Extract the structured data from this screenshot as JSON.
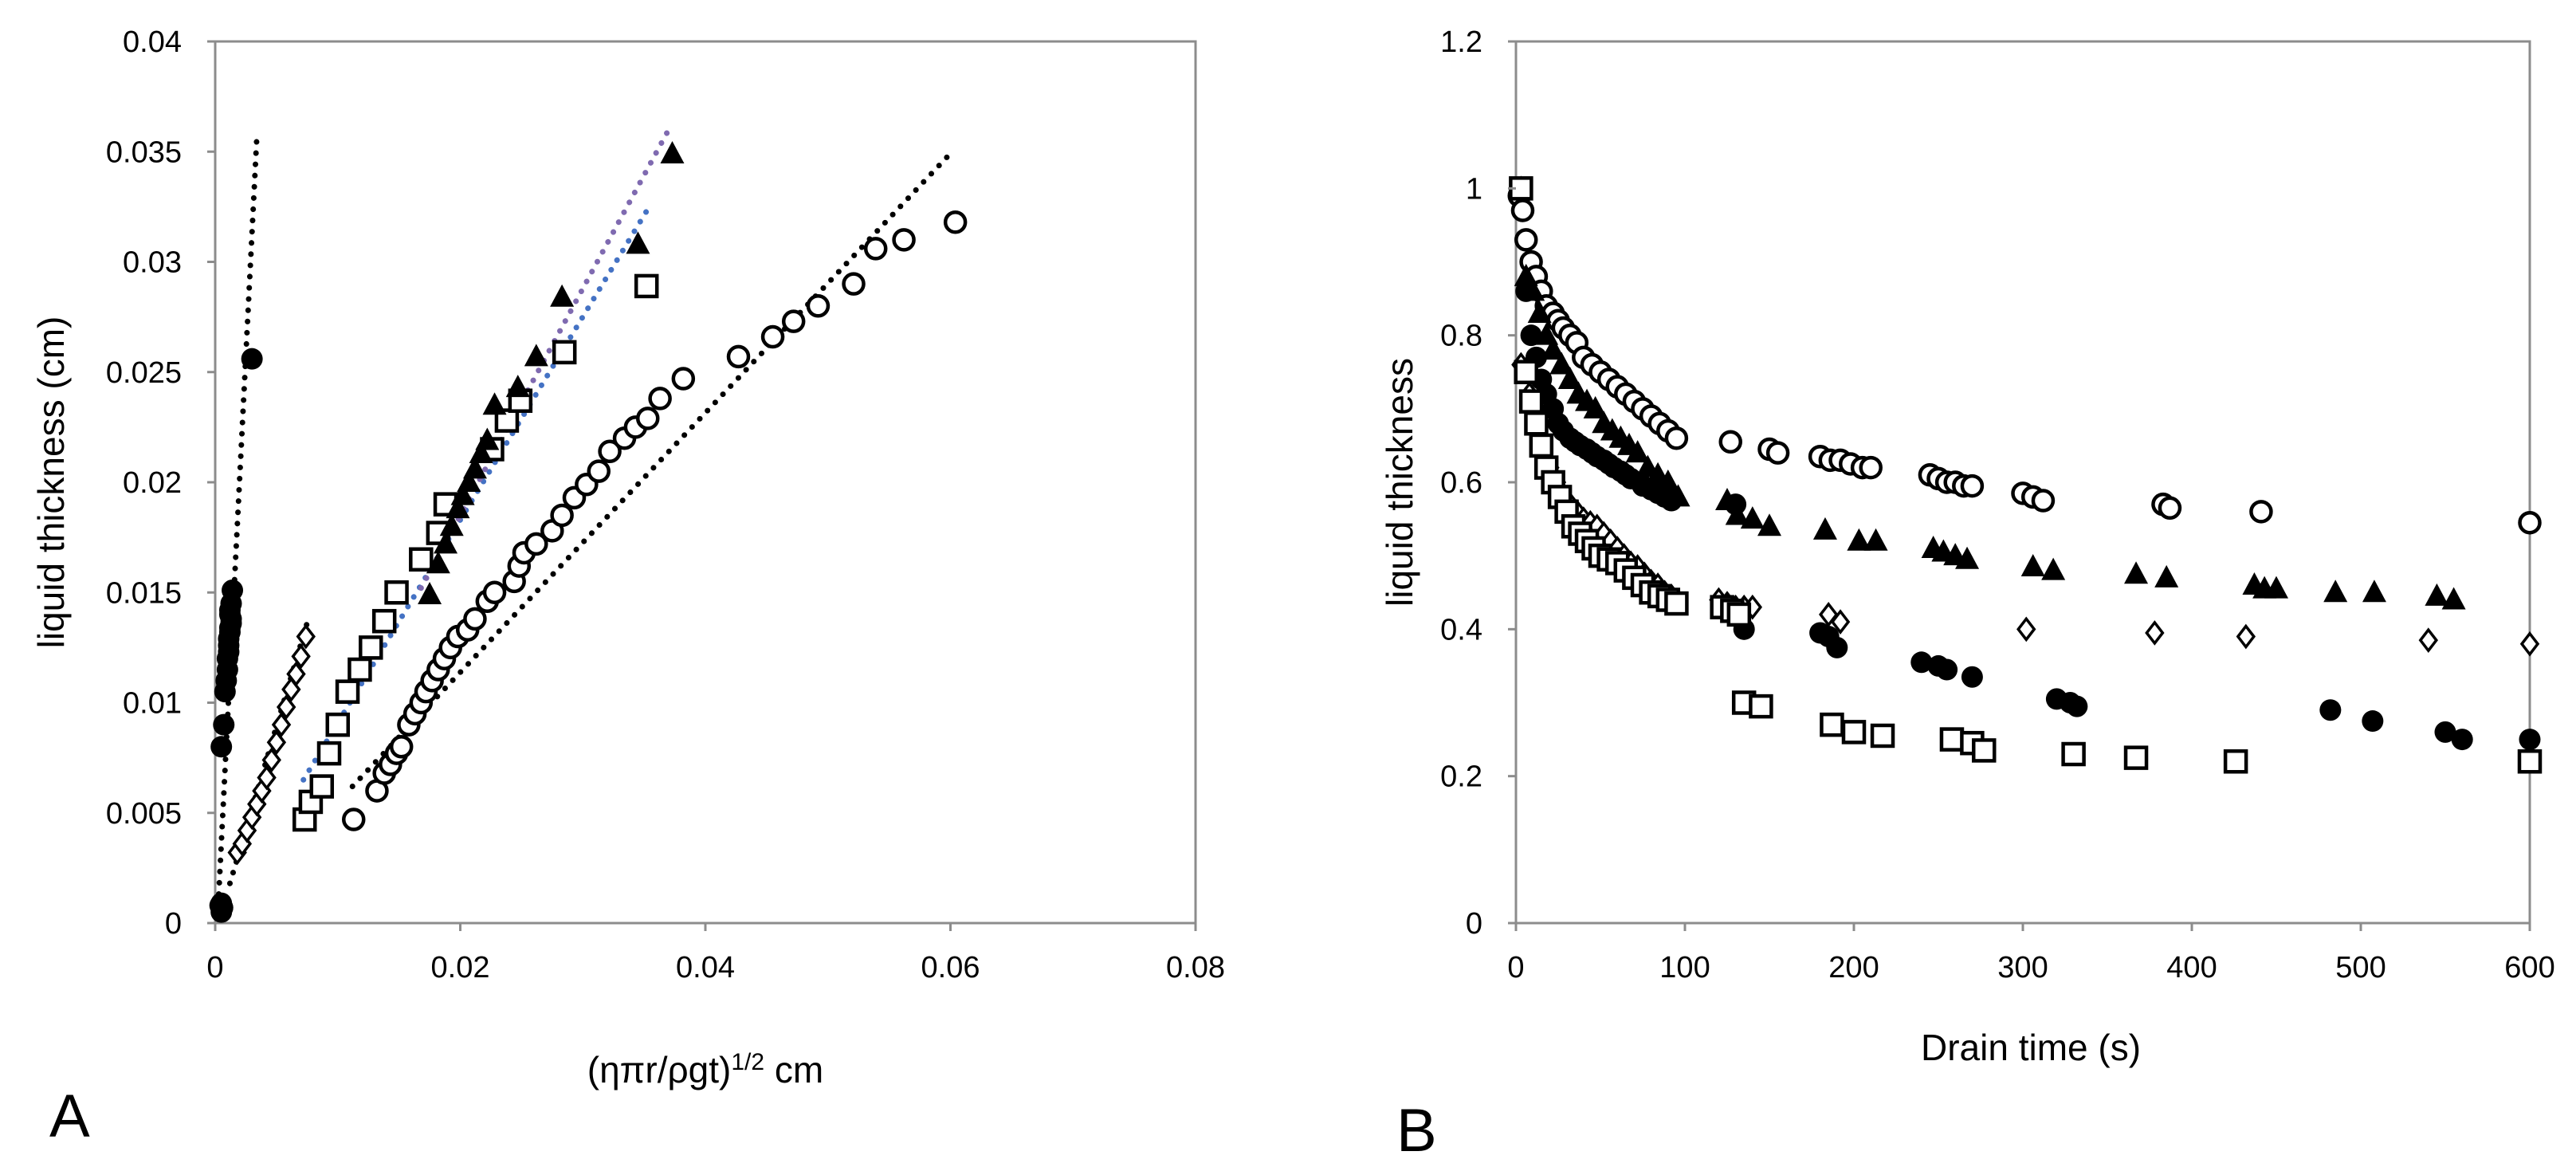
{
  "charts": [
    {
      "panel_label": "A",
      "type": "scatter",
      "xlabel": "(ηπr/ρgt)",
      "xlabel_superscript": "1/2",
      "xlabel_unit": "cm",
      "ylabel": "liquid thickness (cm)",
      "xlim": [
        0,
        0.08
      ],
      "ylim": [
        0,
        0.04
      ],
      "xticks": [
        "0",
        "0.02",
        "0.04",
        "0.06",
        "0.08"
      ],
      "yticks": [
        "0",
        "0.005",
        "0.01",
        "0.015",
        "0.02",
        "0.025",
        "0.03",
        "0.035",
        "0.04"
      ],
      "grid": false,
      "series": [
        {
          "name": "filled circle",
          "marker": "circle-filled",
          "x": [
            0.0005,
            0.0006,
            0.0005,
            0.0004,
            0.0005,
            0.0007,
            0.0008,
            0.0009,
            0.001,
            0.001,
            0.0011,
            0.0011,
            0.0011,
            0.0012,
            0.0012,
            0.0013,
            0.0013,
            0.0012,
            0.0012,
            0.0013,
            0.0014,
            0.003
          ],
          "y": [
            0.0005,
            0.0007,
            0.0009,
            0.0008,
            0.008,
            0.009,
            0.0105,
            0.011,
            0.0115,
            0.012,
            0.0123,
            0.0126,
            0.0129,
            0.0132,
            0.0134,
            0.0136,
            0.0138,
            0.014,
            0.0142,
            0.0145,
            0.0151,
            0.0256
          ]
        },
        {
          "name": "open diamond",
          "marker": "diamond-open",
          "x": [
            0.0018,
            0.0022,
            0.0026,
            0.003,
            0.0034,
            0.0038,
            0.0042,
            0.0046,
            0.005,
            0.0054,
            0.0058,
            0.0062,
            0.0066,
            0.007,
            0.0074
          ],
          "y": [
            0.0032,
            0.0036,
            0.0042,
            0.0048,
            0.0054,
            0.006,
            0.0066,
            0.0074,
            0.0082,
            0.009,
            0.0098,
            0.0106,
            0.0113,
            0.0121,
            0.013
          ]
        },
        {
          "name": "open square",
          "marker": "square-open",
          "x": [
            0.0073,
            0.0078,
            0.0087,
            0.0093,
            0.01,
            0.0108,
            0.0118,
            0.0127,
            0.0138,
            0.0148,
            0.0168,
            0.0182,
            0.0188,
            0.0226,
            0.0238,
            0.0249,
            0.0285,
            0.0352
          ],
          "y": [
            0.0047,
            0.0055,
            0.0062,
            0.0077,
            0.009,
            0.0105,
            0.0115,
            0.0125,
            0.0137,
            0.015,
            0.0165,
            0.0177,
            0.019,
            0.0215,
            0.0228,
            0.0237,
            0.0259,
            0.0289
          ]
        },
        {
          "name": "filled triangle",
          "marker": "triangle-filled",
          "x": [
            0.0175,
            0.0182,
            0.0188,
            0.0193,
            0.0198,
            0.0202,
            0.0207,
            0.0212,
            0.0217,
            0.0222,
            0.0228,
            0.0247,
            0.0262,
            0.0283,
            0.0345,
            0.0373
          ],
          "y": [
            0.0149,
            0.0163,
            0.0172,
            0.018,
            0.0188,
            0.0194,
            0.02,
            0.0206,
            0.0213,
            0.0219,
            0.0235,
            0.0243,
            0.0257,
            0.0284,
            0.0308,
            0.0349
          ]
        },
        {
          "name": "open circle",
          "marker": "circle-open",
          "x": [
            0.0113,
            0.0132,
            0.0138,
            0.0143,
            0.0148,
            0.0152,
            0.0158,
            0.0163,
            0.0168,
            0.0172,
            0.0177,
            0.0182,
            0.0187,
            0.0192,
            0.0198,
            0.0206,
            0.0212,
            0.0222,
            0.0228,
            0.0244,
            0.0248,
            0.0252,
            0.0262,
            0.0275,
            0.0283,
            0.0293,
            0.0303,
            0.0313,
            0.0322,
            0.0334,
            0.0343,
            0.0353,
            0.0363,
            0.0382,
            0.0427,
            0.0455,
            0.0472,
            0.0492,
            0.0521,
            0.0539,
            0.0562,
            0.0604
          ],
          "y": [
            0.0047,
            0.006,
            0.0068,
            0.0072,
            0.0077,
            0.008,
            0.009,
            0.0095,
            0.01,
            0.0105,
            0.011,
            0.0115,
            0.012,
            0.0125,
            0.013,
            0.0133,
            0.0138,
            0.0146,
            0.015,
            0.0155,
            0.0162,
            0.0168,
            0.0172,
            0.0178,
            0.0185,
            0.0193,
            0.0199,
            0.0205,
            0.0214,
            0.022,
            0.0225,
            0.0229,
            0.0238,
            0.0247,
            0.0257,
            0.0266,
            0.0273,
            0.028,
            0.029,
            0.0306,
            0.031,
            0.0318
          ]
        }
      ],
      "trendlines": [
        {
          "name": "filled circle fit",
          "color": "#000000",
          "x": [
            0.0002,
            0.0034
          ],
          "y": [
            0.0003,
            0.0357
          ]
        },
        {
          "name": "diamond fit",
          "color": "#000000",
          "x": [
            0.0012,
            0.0076
          ],
          "y": [
            0.0018,
            0.0138
          ]
        },
        {
          "name": "square fit",
          "color": "#4472c4",
          "x": [
            0.0072,
            0.0352
          ],
          "y": [
            0.0065,
            0.0323
          ]
        },
        {
          "name": "triangle fit",
          "color": "#7f6ab0",
          "x": [
            0.0168,
            0.0372
          ],
          "y": [
            0.0152,
            0.0362
          ]
        },
        {
          "name": "open circle fit",
          "color": "#000000",
          "x": [
            0.0112,
            0.0598
          ],
          "y": [
            0.0062,
            0.0348
          ]
        }
      ]
    },
    {
      "panel_label": "B",
      "type": "scatter",
      "xlabel": "Drain time (s)",
      "ylabel": "liquid thickness",
      "xlim": [
        0,
        600
      ],
      "ylim": [
        0,
        1.2
      ],
      "xticks": [
        "0",
        "100",
        "200",
        "300",
        "400",
        "500",
        "600"
      ],
      "yticks": [
        "0",
        "0.2",
        "0.4",
        "0.6",
        "0.8",
        "1",
        "1.2"
      ],
      "grid": false,
      "series": [
        {
          "name": "open circle",
          "marker": "circle-open",
          "x": [
            2,
            4,
            6,
            9,
            12,
            15,
            18,
            22,
            25,
            28,
            32,
            36,
            40,
            45,
            50,
            55,
            60,
            65,
            70,
            75,
            80,
            85,
            90,
            95,
            127,
            150,
            155,
            180,
            186,
            192,
            198,
            205,
            210,
            245,
            250,
            255,
            260,
            265,
            270,
            300,
            306,
            312,
            383,
            387,
            441,
            600
          ],
          "y": [
            0.99,
            0.97,
            0.93,
            0.9,
            0.88,
            0.86,
            0.84,
            0.83,
            0.82,
            0.81,
            0.8,
            0.79,
            0.77,
            0.76,
            0.75,
            0.74,
            0.73,
            0.72,
            0.71,
            0.7,
            0.69,
            0.68,
            0.67,
            0.66,
            0.655,
            0.645,
            0.64,
            0.635,
            0.63,
            0.63,
            0.625,
            0.62,
            0.62,
            0.61,
            0.605,
            0.6,
            0.6,
            0.595,
            0.595,
            0.585,
            0.58,
            0.575,
            0.57,
            0.565,
            0.56,
            0.545
          ]
        },
        {
          "name": "filled triangle",
          "marker": "triangle-filled",
          "x": [
            3,
            6,
            10,
            14,
            18,
            22,
            27,
            32,
            37,
            42,
            47,
            52,
            57,
            62,
            67,
            72,
            78,
            84,
            90,
            96,
            125,
            131,
            140,
            150,
            183,
            203,
            213,
            247,
            253,
            260,
            267,
            306,
            318,
            367,
            385,
            437,
            443,
            450,
            485,
            508,
            545,
            555
          ],
          "y": [
            1.0,
            0.88,
            0.86,
            0.83,
            0.8,
            0.78,
            0.76,
            0.74,
            0.72,
            0.71,
            0.7,
            0.68,
            0.67,
            0.66,
            0.65,
            0.64,
            0.62,
            0.61,
            0.6,
            0.58,
            0.575,
            0.555,
            0.55,
            0.54,
            0.535,
            0.52,
            0.52,
            0.51,
            0.505,
            0.5,
            0.495,
            0.485,
            0.48,
            0.475,
            0.47,
            0.46,
            0.455,
            0.455,
            0.45,
            0.45,
            0.445,
            0.44
          ]
        },
        {
          "name": "filled circle",
          "marker": "circle-filled",
          "x": [
            3,
            6,
            9,
            12,
            15,
            18,
            22,
            25,
            28,
            32,
            35,
            38,
            42,
            45,
            48,
            52,
            55,
            58,
            62,
            65,
            68,
            75,
            80,
            84,
            88,
            92,
            130,
            135,
            180,
            185,
            190,
            240,
            250,
            255,
            270,
            320,
            328,
            332,
            482,
            507,
            550,
            560,
            600
          ],
          "y": [
            1.0,
            0.86,
            0.8,
            0.77,
            0.74,
            0.72,
            0.7,
            0.68,
            0.67,
            0.66,
            0.655,
            0.65,
            0.645,
            0.64,
            0.635,
            0.63,
            0.625,
            0.62,
            0.615,
            0.61,
            0.605,
            0.595,
            0.59,
            0.585,
            0.58,
            0.575,
            0.57,
            0.4,
            0.395,
            0.39,
            0.375,
            0.355,
            0.35,
            0.345,
            0.335,
            0.305,
            0.3,
            0.295,
            0.29,
            0.275,
            0.26,
            0.25,
            0.25
          ]
        },
        {
          "name": "open diamond",
          "marker": "diamond-open",
          "x": [
            3,
            8,
            12,
            16,
            20,
            24,
            28,
            32,
            36,
            40,
            44,
            48,
            52,
            56,
            60,
            64,
            68,
            72,
            76,
            80,
            84,
            88,
            92,
            120,
            125,
            130,
            135,
            140,
            185,
            192,
            302,
            378,
            432,
            540,
            600
          ],
          "y": [
            0.76,
            0.72,
            0.68,
            0.65,
            0.62,
            0.6,
            0.58,
            0.57,
            0.56,
            0.55,
            0.545,
            0.54,
            0.53,
            0.52,
            0.51,
            0.5,
            0.49,
            0.485,
            0.475,
            0.465,
            0.46,
            0.45,
            0.445,
            0.44,
            0.435,
            0.43,
            0.43,
            0.43,
            0.42,
            0.41,
            0.4,
            0.395,
            0.39,
            0.385,
            0.38
          ]
        },
        {
          "name": "open square",
          "marker": "square-open",
          "x": [
            3,
            6,
            9,
            12,
            15,
            18,
            22,
            26,
            30,
            34,
            38,
            42,
            46,
            50,
            55,
            60,
            65,
            70,
            75,
            80,
            85,
            90,
            95,
            122,
            128,
            132,
            135,
            145,
            187,
            200,
            217,
            258,
            270,
            277,
            330,
            367,
            426,
            600
          ],
          "y": [
            1.0,
            0.75,
            0.71,
            0.68,
            0.65,
            0.62,
            0.6,
            0.58,
            0.56,
            0.54,
            0.53,
            0.52,
            0.51,
            0.5,
            0.495,
            0.49,
            0.48,
            0.47,
            0.46,
            0.45,
            0.445,
            0.44,
            0.435,
            0.43,
            0.425,
            0.42,
            0.3,
            0.295,
            0.27,
            0.26,
            0.255,
            0.25,
            0.245,
            0.235,
            0.23,
            0.225,
            0.22,
            0.22
          ]
        }
      ]
    }
  ]
}
